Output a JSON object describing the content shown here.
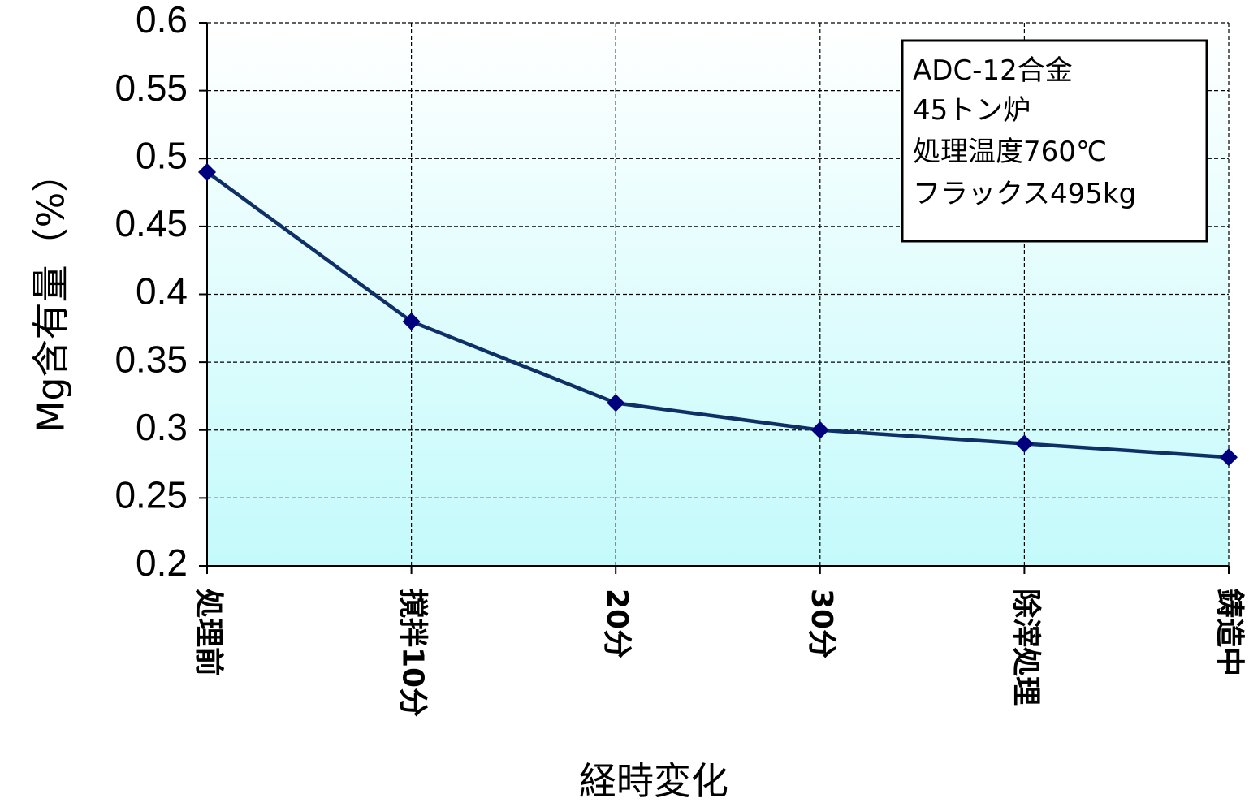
{
  "chart_data": {
    "type": "line",
    "categories": [
      "処理前",
      "撹拌10分",
      "20分",
      "30分",
      "除滓処理",
      "鋳造中"
    ],
    "series": [
      {
        "values": [
          0.49,
          0.38,
          0.32,
          0.3,
          0.29,
          0.28
        ]
      }
    ],
    "ylabel": "Mg含有量（%）",
    "xlabel": "経時変化",
    "ylim": [
      0.2,
      0.6
    ],
    "yticks": [
      "0.2",
      "0.25",
      "0.3",
      "0.35",
      "0.4",
      "0.45",
      "0.5",
      "0.55",
      "0.6"
    ],
    "grid": "dashed",
    "annotation": [
      "ADC-12合金",
      "45トン炉",
      "処理温度760℃",
      "フラックス495kg"
    ],
    "annotation_placement": "top-right",
    "colors": {
      "line": "#0f3066",
      "marker": "#00007f",
      "plot_bg_top": "#ffffff",
      "plot_bg_bottom": "#c4fafb",
      "grid": "#000000"
    }
  }
}
